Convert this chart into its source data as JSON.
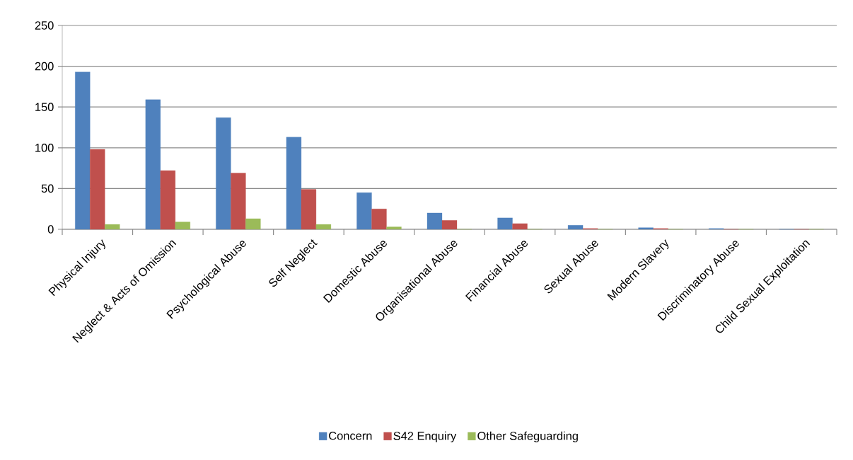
{
  "chart_data": {
    "type": "bar",
    "categories": [
      "Physical Injury",
      "Neglect & Acts of Omission",
      "Psychological Abuse",
      "Self Neglect",
      "Domestic Abuse",
      "Organisational Abuse",
      "Financial Abuse",
      "Sexual Abuse",
      "Modern Slavery",
      "Discriminatory Abuse",
      "Child Sexual Exploitation"
    ],
    "series": [
      {
        "name": "Concern",
        "color": "#4f81bd",
        "values": [
          193,
          159,
          137,
          113,
          45,
          20,
          14,
          5,
          2,
          1,
          0
        ]
      },
      {
        "name": "S42 Enquiry",
        "color": "#c0504d",
        "values": [
          98,
          72,
          69,
          49,
          25,
          11,
          7,
          1,
          1,
          0,
          0
        ]
      },
      {
        "name": "Other Safeguarding",
        "color": "#9bbb59",
        "values": [
          6,
          9,
          13,
          6,
          3,
          0,
          0,
          0,
          0,
          0,
          0
        ]
      }
    ],
    "ylim": [
      0,
      250
    ],
    "yticks": [
      0,
      50,
      100,
      150,
      200,
      250
    ],
    "grid": "y",
    "legend": "bottom"
  }
}
